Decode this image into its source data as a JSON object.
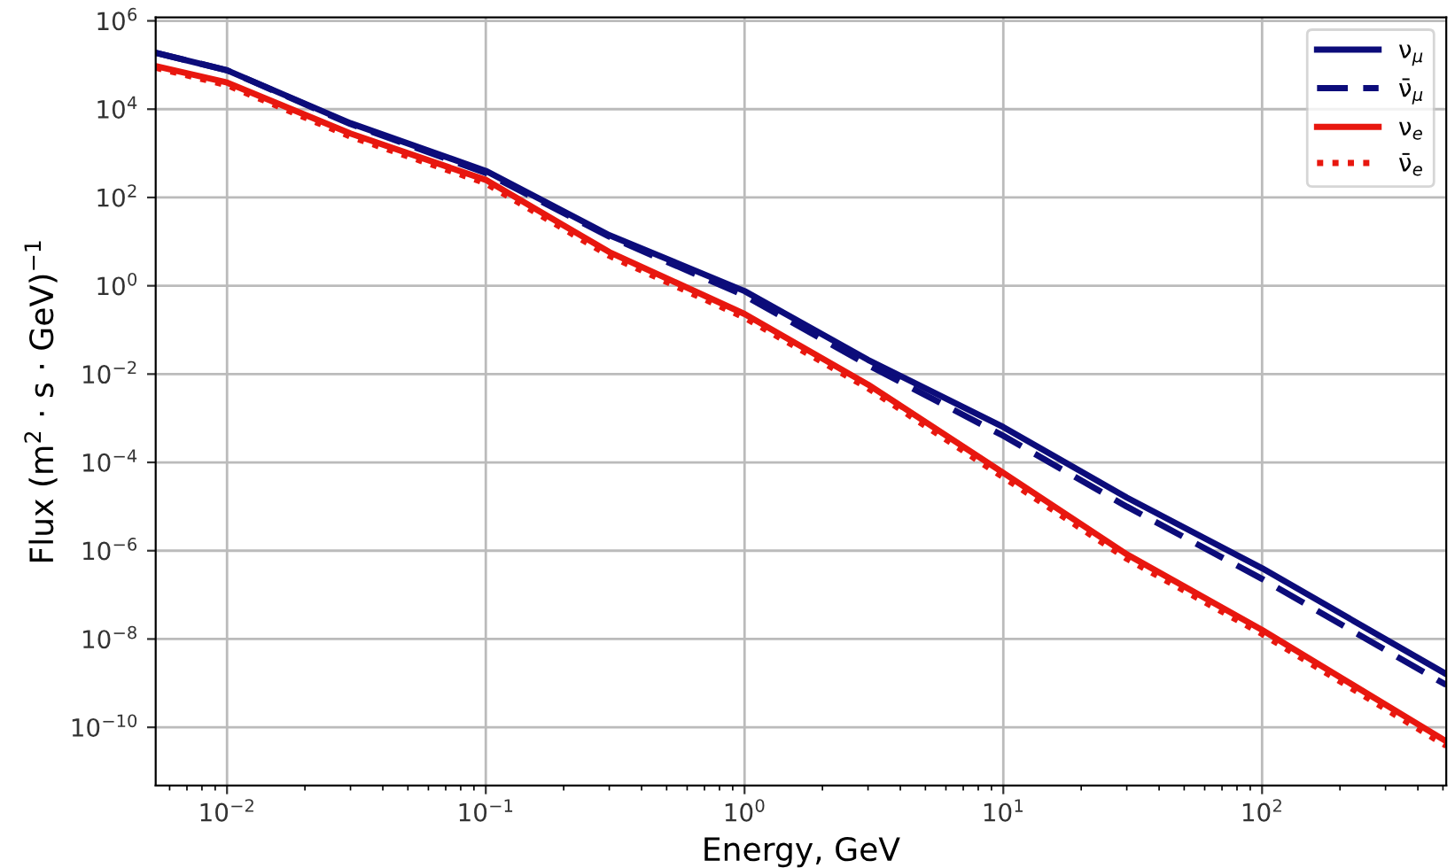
{
  "chart_data": {
    "type": "line",
    "xlabel": "Energy, GeV",
    "ylabel": "Flux (m$^{2}$ · s · GeV)$^{−1}$",
    "log": "xy",
    "grid": true,
    "legend": "top right",
    "x": [
      0.0053,
      0.01,
      0.03,
      0.1,
      0.3,
      1,
      3,
      10,
      30,
      100,
      515
    ],
    "xlim": [
      0.0053,
      515
    ],
    "ylim": [
      4.8e-12,
      1200000.0
    ],
    "xticks": [
      {
        "value": 0.01,
        "label": "10$^{−2}$"
      },
      {
        "value": 0.1,
        "label": "10$^{−1}$"
      },
      {
        "value": 1,
        "label": "10$^{0}$"
      },
      {
        "value": 10,
        "label": "10$^{1}$"
      },
      {
        "value": 100,
        "label": "10$^{2}$"
      }
    ],
    "yticks": [
      {
        "value": 1e-10,
        "label": "10$^{−10}$"
      },
      {
        "value": 1e-08,
        "label": "10$^{−8}$"
      },
      {
        "value": 1e-06,
        "label": "10$^{−6}$"
      },
      {
        "value": 0.0001,
        "label": "10$^{−4}$"
      },
      {
        "value": 0.01,
        "label": "10$^{−2}$"
      },
      {
        "value": 1,
        "label": "10$^{0}$"
      },
      {
        "value": 100,
        "label": "10$^{2}$"
      },
      {
        "value": 10000,
        "label": "10$^{4}$"
      },
      {
        "value": 1000000,
        "label": "10$^{6}$"
      }
    ],
    "series": [
      {
        "name": "ν$_{μ}$",
        "color": "#0c0c7a",
        "line_style": "solid",
        "values": [
          190000.0,
          76000.0,
          4800.0,
          400.0,
          14,
          0.76,
          0.021,
          0.00063,
          1.6e-05,
          4e-07,
          1.6e-09
        ]
      },
      {
        "name": "ν̄$_{μ}$",
        "color": "#0c0c7a",
        "line_style": "dashed",
        "values": [
          190000.0,
          76000.0,
          4600.0,
          360.0,
          13,
          0.6,
          0.016,
          0.0004,
          1e-05,
          2.3e-07,
          9.1e-10
        ]
      },
      {
        "name": "ν$_{e}$",
        "color": "#e8170f",
        "line_style": "solid",
        "values": [
          95000.0,
          40000.0,
          2800.0,
          250.0,
          5.8,
          0.23,
          0.0058,
          5.8e-05,
          8.3e-07,
          1.6e-08,
          4.8e-11
        ]
      },
      {
        "name": "ν̄$_{e}$",
        "color": "#e8170f",
        "line_style": "dotted",
        "values": [
          87000.0,
          35000.0,
          2400.0,
          210.0,
          4.8,
          0.19,
          0.0048,
          4.6e-05,
          6.6e-07,
          1.3e-08,
          3.8e-11
        ]
      }
    ]
  }
}
